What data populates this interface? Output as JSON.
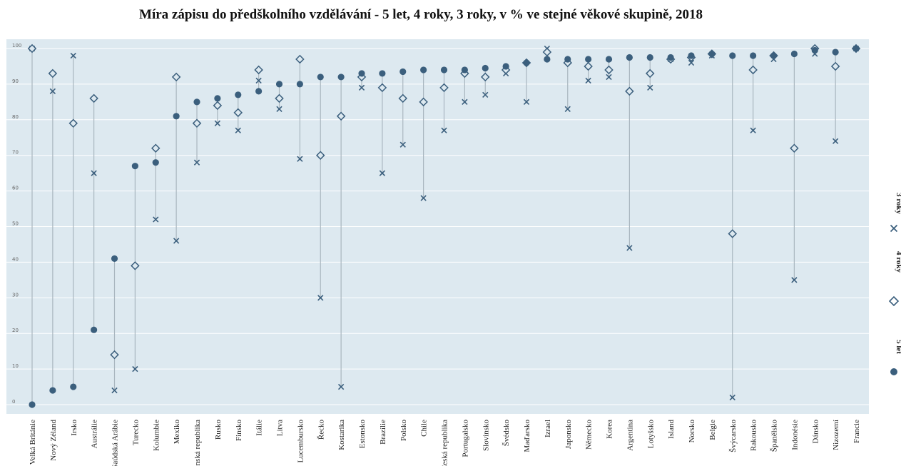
{
  "chart_data": {
    "type": "scatter",
    "title": "Míra zápisu do předškolního vzdělávání - 5 let, 4 roky, 3 roky, v % ve stejné věkové skupině, 2018",
    "ylim": [
      0,
      100
    ],
    "yticks": [
      0,
      10,
      20,
      30,
      40,
      50,
      60,
      70,
      80,
      90,
      100
    ],
    "grid": true,
    "legend_position": "right",
    "colors": {
      "plot_bg": "#dde9f0",
      "marker": "#3b5f7d",
      "range_line": "#a9b6bf",
      "gridline": "#ffffff"
    },
    "categories": [
      "Velká Británie",
      "Nový Zéland",
      "Irsko",
      "Austrálie",
      "Saúdská Arábie",
      "Turecko",
      "Kolumbie",
      "Mexiko",
      "Slovenská republika",
      "Rusko",
      "Finsko",
      "Itálie",
      "Litva",
      "Lucembursko",
      "Řecko",
      "Kostarika",
      "Estonsko",
      "Brazílie",
      "Polsko",
      "Chile",
      "Česká republika",
      "Portugalsko",
      "Slovinsko",
      "Švédsko",
      "Maďarsko",
      "Izrael",
      "Japonsko",
      "Německo",
      "Korea",
      "Argentina",
      "Lotyšsko",
      "Island",
      "Norsko",
      "Belgie",
      "Švýcarsko",
      "Rakousko",
      "Španělsko",
      "Indonésie",
      "Dánsko",
      "Nizozemí",
      "Francie"
    ],
    "series": [
      {
        "name": "5 let",
        "marker": "circle",
        "values": [
          0,
          4,
          5,
          21,
          41,
          67,
          68,
          81,
          85,
          86,
          87,
          88,
          90,
          90,
          92,
          92,
          93,
          93,
          93.5,
          94,
          94,
          94,
          94.5,
          95,
          96,
          97,
          97,
          97,
          97,
          97.5,
          97.5,
          97.5,
          98,
          98.5,
          98,
          98,
          98,
          98.5,
          99.5,
          99,
          100
        ]
      },
      {
        "name": "4 roky",
        "marker": "diamond",
        "values": [
          100,
          93,
          79,
          86,
          14,
          39,
          72,
          92,
          79,
          84,
          82,
          94,
          86,
          97,
          70,
          81,
          92,
          89,
          86,
          85,
          89,
          93,
          92,
          94,
          96,
          99,
          96,
          95,
          94,
          88,
          93,
          97,
          97.5,
          98.5,
          48,
          94,
          98,
          72,
          100,
          95,
          100
        ]
      },
      {
        "name": "3 roky",
        "marker": "x",
        "values": [
          100,
          88,
          98,
          65,
          4,
          10,
          52,
          46,
          68,
          79,
          77,
          91,
          83,
          69,
          30,
          5,
          89,
          65,
          73,
          58,
          77,
          85,
          87,
          93,
          85,
          100,
          83,
          91,
          92,
          44,
          89,
          97,
          96,
          98,
          2,
          77,
          97,
          35,
          98.5,
          74,
          100
        ]
      }
    ]
  }
}
